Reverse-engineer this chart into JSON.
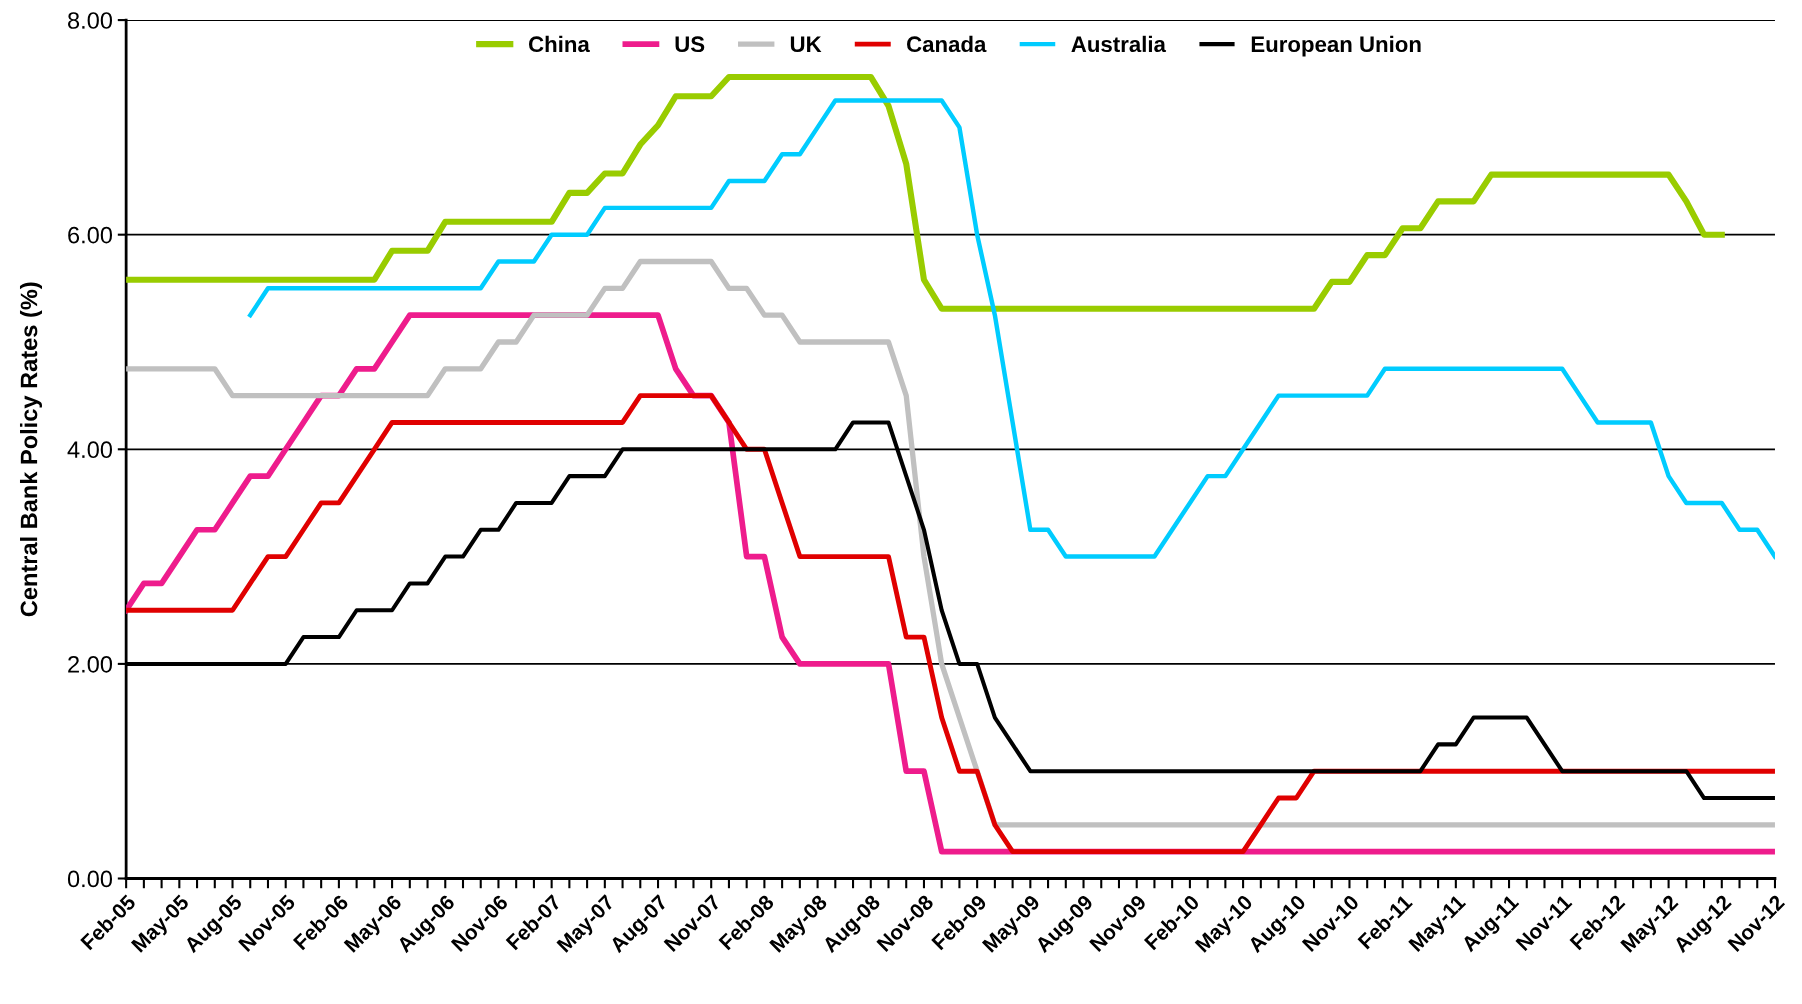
{
  "chart_data": {
    "type": "line",
    "ylabel": "Central Bank Policy Rates (%)",
    "categories": [
      "Feb-05",
      null,
      null,
      "May-05",
      null,
      null,
      "Aug-05",
      null,
      null,
      "Nov-05",
      null,
      null,
      "Feb-06",
      null,
      null,
      "May-06",
      null,
      null,
      "Aug-06",
      null,
      null,
      "Nov-06",
      null,
      null,
      "Feb-07",
      null,
      null,
      "May-07",
      null,
      null,
      "Aug-07",
      null,
      null,
      "Nov-07",
      null,
      null,
      "Feb-08",
      null,
      null,
      "May-08",
      null,
      null,
      "Aug-08",
      null,
      null,
      "Nov-08",
      null,
      null,
      "Feb-09",
      null,
      null,
      "May-09",
      null,
      null,
      "Aug-09",
      null,
      null,
      "Nov-09",
      null,
      null,
      "Feb-10",
      null,
      null,
      "May-10",
      null,
      null,
      "Aug-10",
      null,
      null,
      "Nov-10",
      null,
      null,
      "Feb-11",
      null,
      null,
      "May-11",
      null,
      null,
      "Aug-11",
      null,
      null,
      "Nov-11",
      null,
      null,
      "Feb-12",
      null,
      null,
      "May-12",
      null,
      null,
      "Aug-12",
      null,
      null,
      "Nov-12"
    ],
    "series": [
      {
        "name": "China",
        "color": "#99cc00",
        "values": [
          5.58,
          5.58,
          5.58,
          5.58,
          5.58,
          5.58,
          5.58,
          5.58,
          5.58,
          5.58,
          5.58,
          5.58,
          5.58,
          5.58,
          5.58,
          5.85,
          5.85,
          5.85,
          6.12,
          6.12,
          6.12,
          6.12,
          6.12,
          6.12,
          6.12,
          6.39,
          6.39,
          6.57,
          6.57,
          6.84,
          7.02,
          7.29,
          7.29,
          7.29,
          7.47,
          7.47,
          7.47,
          7.47,
          7.47,
          7.47,
          7.47,
          7.47,
          7.47,
          7.2,
          6.66,
          5.58,
          5.31,
          5.31,
          5.31,
          5.31,
          5.31,
          5.31,
          5.31,
          5.31,
          5.31,
          5.31,
          5.31,
          5.31,
          5.31,
          5.31,
          5.31,
          5.31,
          5.31,
          5.31,
          5.31,
          5.31,
          5.31,
          5.31,
          5.56,
          5.56,
          5.81,
          5.81,
          6.06,
          6.06,
          6.31,
          6.31,
          6.31,
          6.56,
          6.56,
          6.56,
          6.56,
          6.56,
          6.56,
          6.56,
          6.56,
          6.56,
          6.56,
          6.56,
          6.31,
          6.0,
          6.0,
          null,
          null,
          null
        ]
      },
      {
        "name": "US",
        "color": "#ee1c8c",
        "values": [
          2.5,
          2.75,
          2.75,
          3.0,
          3.25,
          3.25,
          3.5,
          3.75,
          3.75,
          4.0,
          4.25,
          4.5,
          4.5,
          4.75,
          4.75,
          5.0,
          5.25,
          5.25,
          5.25,
          5.25,
          5.25,
          5.25,
          5.25,
          5.25,
          5.25,
          5.25,
          5.25,
          5.25,
          5.25,
          5.25,
          5.25,
          4.75,
          4.5,
          4.5,
          4.25,
          3.0,
          3.0,
          2.25,
          2.0,
          2.0,
          2.0,
          2.0,
          2.0,
          2.0,
          1.0,
          1.0,
          0.25,
          0.25,
          0.25,
          0.25,
          0.25,
          0.25,
          0.25,
          0.25,
          0.25,
          0.25,
          0.25,
          0.25,
          0.25,
          0.25,
          0.25,
          0.25,
          0.25,
          0.25,
          0.25,
          0.25,
          0.25,
          0.25,
          0.25,
          0.25,
          0.25,
          0.25,
          0.25,
          0.25,
          0.25,
          0.25,
          0.25,
          0.25,
          0.25,
          0.25,
          0.25,
          0.25,
          0.25,
          0.25,
          0.25,
          0.25,
          0.25,
          0.25,
          0.25,
          0.25,
          0.25,
          0.25,
          0.25,
          0.25
        ]
      },
      {
        "name": "UK",
        "color": "#c0c0c0",
        "values": [
          4.75,
          4.75,
          4.75,
          4.75,
          4.75,
          4.75,
          4.5,
          4.5,
          4.5,
          4.5,
          4.5,
          4.5,
          4.5,
          4.5,
          4.5,
          4.5,
          4.5,
          4.5,
          4.75,
          4.75,
          4.75,
          5.0,
          5.0,
          5.25,
          5.25,
          5.25,
          5.25,
          5.5,
          5.5,
          5.75,
          5.75,
          5.75,
          5.75,
          5.75,
          5.5,
          5.5,
          5.25,
          5.25,
          5.0,
          5.0,
          5.0,
          5.0,
          5.0,
          5.0,
          4.5,
          3.0,
          2.0,
          1.5,
          1.0,
          0.5,
          0.5,
          0.5,
          0.5,
          0.5,
          0.5,
          0.5,
          0.5,
          0.5,
          0.5,
          0.5,
          0.5,
          0.5,
          0.5,
          0.5,
          0.5,
          0.5,
          0.5,
          0.5,
          0.5,
          0.5,
          0.5,
          0.5,
          0.5,
          0.5,
          0.5,
          0.5,
          0.5,
          0.5,
          0.5,
          0.5,
          0.5,
          0.5,
          0.5,
          0.5,
          0.5,
          0.5,
          0.5,
          0.5,
          0.5,
          0.5,
          0.5,
          0.5,
          0.5,
          0.5
        ]
      },
      {
        "name": "Canada",
        "color": "#e00000",
        "values": [
          2.5,
          2.5,
          2.5,
          2.5,
          2.5,
          2.5,
          2.5,
          2.75,
          3.0,
          3.0,
          3.25,
          3.5,
          3.5,
          3.75,
          4.0,
          4.25,
          4.25,
          4.25,
          4.25,
          4.25,
          4.25,
          4.25,
          4.25,
          4.25,
          4.25,
          4.25,
          4.25,
          4.25,
          4.25,
          4.5,
          4.5,
          4.5,
          4.5,
          4.5,
          4.25,
          4.0,
          4.0,
          3.5,
          3.0,
          3.0,
          3.0,
          3.0,
          3.0,
          3.0,
          2.25,
          2.25,
          1.5,
          1.0,
          1.0,
          0.5,
          0.25,
          0.25,
          0.25,
          0.25,
          0.25,
          0.25,
          0.25,
          0.25,
          0.25,
          0.25,
          0.25,
          0.25,
          0.25,
          0.25,
          0.5,
          0.75,
          0.75,
          1.0,
          1.0,
          1.0,
          1.0,
          1.0,
          1.0,
          1.0,
          1.0,
          1.0,
          1.0,
          1.0,
          1.0,
          1.0,
          1.0,
          1.0,
          1.0,
          1.0,
          1.0,
          1.0,
          1.0,
          1.0,
          1.0,
          1.0,
          1.0,
          1.0,
          1.0,
          1.0
        ]
      },
      {
        "name": "Australia",
        "color": "#00ccff",
        "values": [
          null,
          null,
          null,
          null,
          null,
          null,
          null,
          5.25,
          5.5,
          5.5,
          5.5,
          5.5,
          5.5,
          5.5,
          5.5,
          5.5,
          5.5,
          5.5,
          5.5,
          5.5,
          5.5,
          5.75,
          5.75,
          5.75,
          6.0,
          6.0,
          6.0,
          6.25,
          6.25,
          6.25,
          6.25,
          6.25,
          6.25,
          6.25,
          6.5,
          6.5,
          6.5,
          6.75,
          6.75,
          7.0,
          7.25,
          7.25,
          7.25,
          7.25,
          7.25,
          7.25,
          7.25,
          7.0,
          6.0,
          5.25,
          4.25,
          3.25,
          3.25,
          3.0,
          3.0,
          3.0,
          3.0,
          3.0,
          3.0,
          3.25,
          3.5,
          3.75,
          3.75,
          4.0,
          4.25,
          4.5,
          4.5,
          4.5,
          4.5,
          4.5,
          4.5,
          4.75,
          4.75,
          4.75,
          4.75,
          4.75,
          4.75,
          4.75,
          4.75,
          4.75,
          4.75,
          4.75,
          4.5,
          4.25,
          4.25,
          4.25,
          4.25,
          3.75,
          3.5,
          3.5,
          3.5,
          3.25,
          3.25,
          3.0
        ]
      },
      {
        "name": "European Union",
        "color": "#000000",
        "values": [
          2.0,
          2.0,
          2.0,
          2.0,
          2.0,
          2.0,
          2.0,
          2.0,
          2.0,
          2.0,
          2.25,
          2.25,
          2.25,
          2.5,
          2.5,
          2.5,
          2.75,
          2.75,
          3.0,
          3.0,
          3.25,
          3.25,
          3.5,
          3.5,
          3.5,
          3.75,
          3.75,
          3.75,
          4.0,
          4.0,
          4.0,
          4.0,
          4.0,
          4.0,
          4.0,
          4.0,
          4.0,
          4.0,
          4.0,
          4.0,
          4.0,
          4.25,
          4.25,
          4.25,
          3.75,
          3.25,
          2.5,
          2.0,
          2.0,
          1.5,
          1.25,
          1.0,
          1.0,
          1.0,
          1.0,
          1.0,
          1.0,
          1.0,
          1.0,
          1.0,
          1.0,
          1.0,
          1.0,
          1.0,
          1.0,
          1.0,
          1.0,
          1.0,
          1.0,
          1.0,
          1.0,
          1.0,
          1.0,
          1.0,
          1.25,
          1.25,
          1.5,
          1.5,
          1.5,
          1.5,
          1.25,
          1.0,
          1.0,
          1.0,
          1.0,
          1.0,
          1.0,
          1.0,
          1.0,
          0.75,
          0.75,
          0.75,
          0.75,
          0.75
        ]
      }
    ],
    "ylim": [
      0,
      8
    ],
    "yticks": [
      {
        "value": 0,
        "label": "0.00"
      },
      {
        "value": 2,
        "label": "2.00"
      },
      {
        "value": 4,
        "label": "4.00"
      },
      {
        "value": 6,
        "label": "6.00"
      },
      {
        "value": 8,
        "label": "8.00"
      }
    ],
    "grid": "y",
    "legend": "top",
    "marker": "none",
    "line_style": "solid"
  }
}
